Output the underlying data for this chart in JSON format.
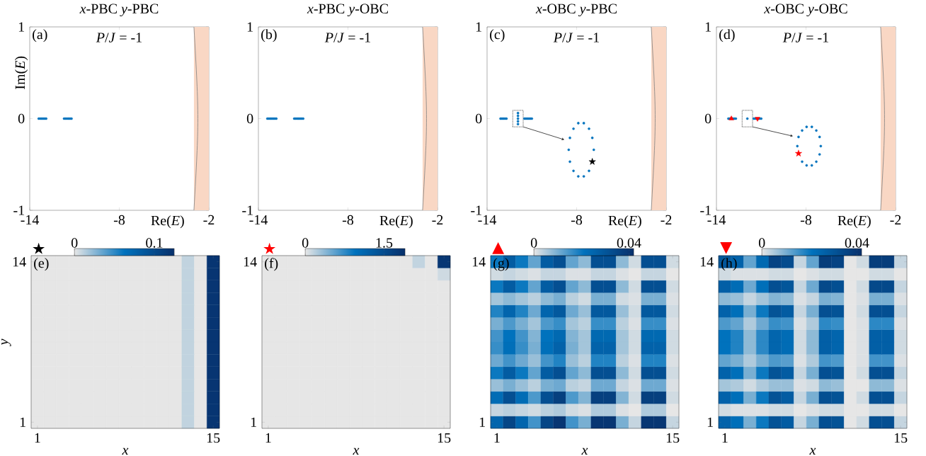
{
  "chart_data": [
    {
      "type": "scatter",
      "title": "*x*-PBC  *y*-PBC",
      "xlabel": "Re(*E*)",
      "ylabel": "Im(*E*)",
      "xlim": [
        -14,
        -2
      ],
      "ylim": [
        -1,
        1
      ],
      "xticks": [
        -14,
        -8,
        -2
      ],
      "yticks": [
        -1,
        0,
        1
      ],
      "marker": "circle",
      "annotations": [
        "(a)",
        "*P*/*J* = -1"
      ],
      "bands": [
        {
          "axis": "x",
          "from": -3.0,
          "to": -2,
          "color": "#f9d7c4"
        }
      ],
      "series": [
        {
          "color": "#0072bd",
          "x": [
            -13.4,
            -13.3,
            -13.2,
            -13.1,
            -13.0,
            -12.9,
            -11.7,
            -11.6,
            -11.5,
            -11.4,
            -11.3,
            -11.2
          ],
          "values": [
            0,
            0,
            0,
            0,
            0,
            0,
            0,
            0,
            0,
            0,
            0,
            0
          ]
        }
      ]
    },
    {
      "type": "scatter",
      "title": "*x*-PBC  *y*-OBC",
      "xlabel": "Re(*E*)",
      "xlim": [
        -14,
        -2
      ],
      "ylim": [
        -1,
        1
      ],
      "xticks": [
        -14,
        -8,
        -2
      ],
      "yticks": [
        -1,
        0,
        1
      ],
      "marker": "circle",
      "annotations": [
        "(b)",
        "*P*/*J* = -1"
      ],
      "bands": [
        {
          "axis": "x",
          "from": -3.0,
          "to": -2,
          "color": "#f9d7c4"
        }
      ],
      "series": [
        {
          "color": "#0072bd",
          "x": [
            -13.4,
            -13.3,
            -13.2,
            -13.1,
            -13.0,
            -12.9,
            -12.8,
            -11.6,
            -11.5,
            -11.4,
            -11.3,
            -11.2,
            -11.1,
            -11.0
          ],
          "values": [
            0,
            0,
            0,
            0,
            0,
            0,
            0,
            0,
            0,
            0,
            0,
            0,
            0,
            0
          ]
        }
      ]
    },
    {
      "type": "scatter",
      "title": "*x*-OBC  *y*-PBC",
      "xlabel": "Re(*E*)",
      "xlim": [
        -14,
        -2
      ],
      "ylim": [
        -1,
        1
      ],
      "xticks": [
        -14,
        -8,
        -2
      ],
      "yticks": [
        -1,
        0,
        1
      ],
      "marker": "circle",
      "annotations": [
        "(c)",
        "*P*/*J* = -1"
      ],
      "bands": [
        {
          "axis": "x",
          "from": -3.0,
          "to": -2,
          "color": "#f9d7c4"
        }
      ],
      "series": [
        {
          "color": "#0072bd",
          "x": [
            -13.1,
            -13.0,
            -12.9,
            -12.8,
            -12.7,
            -11.93,
            -11.93,
            -11.93,
            -11.93,
            -11.93,
            -11.5,
            -11.4,
            -11.3,
            -11.2,
            -11.1,
            -11.0
          ],
          "values": [
            0,
            0,
            0,
            0,
            0,
            -0.06,
            -0.03,
            0,
            0.03,
            0.06,
            0,
            0,
            0,
            0,
            0,
            0
          ]
        },
        {
          "color": "#0072bd",
          "x": [
            -7.89,
            -7.52,
            -7.17,
            -6.95,
            -6.85,
            -7.17,
            -7.52,
            -7.89,
            -8.21,
            -8.45,
            -8.53,
            -8.45,
            -8.21
          ],
          "values": [
            -0.05,
            -0.05,
            -0.11,
            -0.21,
            -0.34,
            -0.57,
            -0.63,
            -0.63,
            -0.57,
            -0.47,
            -0.34,
            -0.21,
            -0.11
          ]
        },
        {
          "color": "#000000",
          "marker": "star",
          "x": [
            -6.95
          ],
          "values": [
            -0.47
          ]
        }
      ]
    },
    {
      "type": "scatter",
      "title": "*x*-OBC  *y*-OBC",
      "xlabel": "Re(*E*)",
      "xlim": [
        -14,
        -2
      ],
      "ylim": [
        -1,
        1
      ],
      "xticks": [
        -14,
        -8,
        -2
      ],
      "yticks": [
        -1,
        0,
        1
      ],
      "marker": "circle",
      "annotations": [
        "(d)",
        "*P*/*J* = -1"
      ],
      "bands": [
        {
          "axis": "x",
          "from": -3.0,
          "to": -2,
          "color": "#f9d7c4"
        }
      ],
      "series": [
        {
          "color": "#0072bd",
          "x": [
            -13.2,
            -13.1,
            -13.0,
            -12.9,
            -12.8,
            -12.7,
            -11.93,
            -11.5,
            -11.4,
            -11.3,
            -11.2,
            -11.1,
            -11.0
          ],
          "values": [
            0,
            0,
            0,
            0,
            0,
            0,
            0,
            0,
            0,
            0,
            0,
            0,
            0
          ]
        },
        {
          "color": "#0072bd",
          "x": [
            -7.96,
            -7.61,
            -7.31,
            -7.09,
            -7.01,
            -7.09,
            -7.31,
            -7.61,
            -7.96,
            -8.26,
            -8.58,
            -8.5,
            -8.26
          ],
          "values": [
            -0.09,
            -0.09,
            -0.13,
            -0.2,
            -0.3,
            -0.39,
            -0.47,
            -0.51,
            -0.51,
            -0.47,
            -0.3,
            -0.2,
            -0.13
          ]
        },
        {
          "color": "#ff0000",
          "marker": "star",
          "x": [
            -8.5
          ],
          "values": [
            -0.38
          ]
        },
        {
          "color": "#ff0000",
          "marker": "triangle",
          "x": [
            -13.0
          ],
          "values": [
            0
          ]
        },
        {
          "color": "#ff0000",
          "marker": "triangle down",
          "x": [
            -11.25
          ],
          "values": [
            0
          ]
        }
      ]
    },
    {
      "type": "heatmap",
      "xlabel": "*x*",
      "ylabel": "*y*",
      "annotations": [
        "★",
        "(e)"
      ],
      "clim": [
        0,
        0.125
      ],
      "cticks": [
        0,
        0.1
      ],
      "categories": [
        "1",
        null,
        null,
        null,
        null,
        null,
        null,
        null,
        null,
        null,
        null,
        null,
        null,
        null,
        "15"
      ],
      "y_categories": [
        "14",
        null,
        null,
        null,
        null,
        null,
        null,
        null,
        null,
        null,
        null,
        null,
        null,
        "1"
      ],
      "cells": [
        [
          0,
          0,
          0,
          0,
          0,
          0,
          0,
          0,
          0,
          0,
          0,
          0,
          0.01,
          0,
          0.12
        ],
        [
          0,
          0,
          0,
          0,
          0,
          0,
          0,
          0,
          0,
          0,
          0,
          0,
          0.01,
          0,
          0.12
        ],
        [
          0,
          0,
          0,
          0,
          0,
          0,
          0,
          0,
          0,
          0,
          0,
          0,
          0.01,
          0,
          0.12
        ],
        [
          0,
          0,
          0,
          0,
          0,
          0,
          0,
          0,
          0,
          0,
          0,
          0,
          0.01,
          0,
          0.12
        ],
        [
          0,
          0,
          0,
          0,
          0,
          0,
          0,
          0,
          0,
          0,
          0,
          0,
          0.01,
          0,
          0.12
        ],
        [
          0,
          0,
          0,
          0,
          0,
          0,
          0,
          0,
          0,
          0,
          0,
          0,
          0.01,
          0,
          0.12
        ],
        [
          0,
          0,
          0,
          0,
          0,
          0,
          0,
          0,
          0,
          0,
          0,
          0,
          0.01,
          0,
          0.12
        ],
        [
          0,
          0,
          0,
          0,
          0,
          0,
          0,
          0,
          0,
          0,
          0,
          0,
          0.01,
          0,
          0.12
        ],
        [
          0,
          0,
          0,
          0,
          0,
          0,
          0,
          0,
          0,
          0,
          0,
          0,
          0.01,
          0,
          0.12
        ],
        [
          0,
          0,
          0,
          0,
          0,
          0,
          0,
          0,
          0,
          0,
          0,
          0,
          0.01,
          0,
          0.12
        ],
        [
          0,
          0,
          0,
          0,
          0,
          0,
          0,
          0,
          0,
          0,
          0,
          0,
          0.01,
          0,
          0.12
        ],
        [
          0,
          0,
          0,
          0,
          0,
          0,
          0,
          0,
          0,
          0,
          0,
          0,
          0.01,
          0,
          0.12
        ],
        [
          0,
          0,
          0,
          0,
          0,
          0,
          0,
          0,
          0,
          0,
          0,
          0,
          0.01,
          0,
          0.12
        ],
        [
          0,
          0,
          0,
          0,
          0,
          0,
          0,
          0,
          0,
          0,
          0,
          0,
          0.01,
          0,
          0.12
        ]
      ]
    },
    {
      "type": "heatmap",
      "xlabel": "*x*",
      "annotations": [
        "★",
        "(f)"
      ],
      "clim": [
        0,
        1.9
      ],
      "cticks": [
        0,
        1.5
      ],
      "categories": [
        "1",
        null,
        null,
        null,
        null,
        null,
        null,
        null,
        null,
        null,
        null,
        null,
        null,
        null,
        "15"
      ],
      "y_categories": [
        "14",
        null,
        null,
        null,
        null,
        null,
        null,
        null,
        null,
        null,
        null,
        null,
        null,
        "1"
      ],
      "cells": [
        [
          0,
          0,
          0,
          0,
          0,
          0,
          0,
          0,
          0,
          0,
          0,
          0,
          0.15,
          0,
          1.8
        ],
        [
          0,
          0,
          0,
          0,
          0,
          0,
          0,
          0,
          0,
          0,
          0,
          0,
          0,
          0,
          0.1
        ],
        [
          0,
          0,
          0,
          0,
          0,
          0,
          0,
          0,
          0,
          0,
          0,
          0,
          0,
          0,
          0
        ],
        [
          0,
          0,
          0,
          0,
          0,
          0,
          0,
          0,
          0,
          0,
          0,
          0,
          0,
          0,
          0
        ],
        [
          0,
          0,
          0,
          0,
          0,
          0,
          0,
          0,
          0,
          0,
          0,
          0,
          0,
          0,
          0
        ],
        [
          0,
          0,
          0,
          0,
          0,
          0,
          0,
          0,
          0,
          0,
          0,
          0,
          0,
          0,
          0
        ],
        [
          0,
          0,
          0,
          0,
          0,
          0,
          0,
          0,
          0,
          0,
          0,
          0,
          0,
          0,
          0
        ],
        [
          0,
          0,
          0,
          0,
          0,
          0,
          0,
          0,
          0,
          0,
          0,
          0,
          0,
          0,
          0
        ],
        [
          0,
          0,
          0,
          0,
          0,
          0,
          0,
          0,
          0,
          0,
          0,
          0,
          0,
          0,
          0
        ],
        [
          0,
          0,
          0,
          0,
          0,
          0,
          0,
          0,
          0,
          0,
          0,
          0,
          0,
          0,
          0
        ],
        [
          0,
          0,
          0,
          0,
          0,
          0,
          0,
          0,
          0,
          0,
          0,
          0,
          0,
          0,
          0
        ],
        [
          0,
          0,
          0,
          0,
          0,
          0,
          0,
          0,
          0,
          0,
          0,
          0,
          0,
          0,
          0
        ],
        [
          0,
          0,
          0,
          0,
          0,
          0,
          0,
          0,
          0,
          0,
          0,
          0,
          0,
          0,
          0
        ],
        [
          0,
          0,
          0,
          0,
          0,
          0,
          0,
          0,
          0,
          0,
          0,
          0,
          0,
          0,
          0
        ]
      ]
    },
    {
      "type": "heatmap",
      "xlabel": "*x*",
      "annotations": [
        "▲",
        "(g)"
      ],
      "clim": [
        0,
        0.042
      ],
      "cticks": [
        0,
        0.04
      ],
      "categories": [
        "1",
        null,
        null,
        null,
        null,
        null,
        null,
        null,
        null,
        null,
        null,
        null,
        null,
        null,
        "15"
      ],
      "y_categories": [
        "14",
        null,
        null,
        null,
        null,
        null,
        null,
        null,
        null,
        null,
        null,
        null,
        null,
        "1"
      ],
      "cells": [
        [
          0.02,
          0.028,
          0.02,
          0.012,
          0.028,
          0.032,
          0.012,
          0.008,
          0.032,
          0.032,
          0.008,
          0.002,
          0.032,
          0.032,
          0.002
        ],
        [
          0.002,
          0.003,
          0.002,
          0.001,
          0.003,
          0.003,
          0.001,
          0.001,
          0.003,
          0.003,
          0.001,
          0,
          0.003,
          0.003,
          0
        ],
        [
          0.02,
          0.028,
          0.02,
          0.012,
          0.028,
          0.032,
          0.012,
          0.008,
          0.032,
          0.032,
          0.008,
          0.002,
          0.032,
          0.032,
          0.002
        ],
        [
          0.006,
          0.008,
          0.006,
          0.004,
          0.008,
          0.01,
          0.004,
          0.002,
          0.01,
          0.01,
          0.002,
          0.001,
          0.01,
          0.01,
          0.001
        ],
        [
          0.018,
          0.025,
          0.018,
          0.011,
          0.025,
          0.029,
          0.011,
          0.007,
          0.029,
          0.029,
          0.007,
          0.002,
          0.029,
          0.029,
          0.002
        ],
        [
          0.01,
          0.014,
          0.01,
          0.006,
          0.014,
          0.016,
          0.006,
          0.004,
          0.016,
          0.016,
          0.004,
          0.001,
          0.016,
          0.016,
          0.001
        ],
        [
          0.015,
          0.021,
          0.015,
          0.009,
          0.021,
          0.024,
          0.009,
          0.006,
          0.024,
          0.024,
          0.006,
          0.002,
          0.024,
          0.024,
          0.002
        ],
        [
          0.016,
          0.022,
          0.016,
          0.01,
          0.022,
          0.026,
          0.01,
          0.006,
          0.026,
          0.026,
          0.006,
          0.002,
          0.026,
          0.026,
          0.002
        ],
        [
          0.011,
          0.015,
          0.011,
          0.007,
          0.015,
          0.018,
          0.007,
          0.004,
          0.018,
          0.018,
          0.004,
          0.001,
          0.018,
          0.018,
          0.001
        ],
        [
          0.02,
          0.028,
          0.02,
          0.012,
          0.028,
          0.032,
          0.012,
          0.008,
          0.032,
          0.032,
          0.008,
          0.002,
          0.032,
          0.032,
          0.002
        ],
        [
          0.007,
          0.01,
          0.007,
          0.004,
          0.01,
          0.011,
          0.004,
          0.003,
          0.011,
          0.011,
          0.003,
          0.001,
          0.011,
          0.011,
          0.001
        ],
        [
          0.023,
          0.032,
          0.023,
          0.014,
          0.032,
          0.037,
          0.014,
          0.009,
          0.037,
          0.037,
          0.009,
          0.002,
          0.037,
          0.037,
          0.002
        ],
        [
          0.003,
          0.004,
          0.003,
          0.002,
          0.004,
          0.005,
          0.002,
          0.001,
          0.005,
          0.005,
          0.001,
          0,
          0.005,
          0.005,
          0
        ],
        [
          0.025,
          0.035,
          0.025,
          0.015,
          0.035,
          0.04,
          0.015,
          0.01,
          0.04,
          0.04,
          0.01,
          0.003,
          0.04,
          0.04,
          0.003
        ]
      ]
    },
    {
      "type": "heatmap",
      "xlabel": "*x*",
      "annotations": [
        "▼",
        "(h)"
      ],
      "clim": [
        0,
        0.042
      ],
      "cticks": [
        0,
        0.04
      ],
      "categories": [
        "1",
        null,
        null,
        null,
        null,
        null,
        null,
        null,
        null,
        null,
        null,
        null,
        null,
        null,
        "15"
      ],
      "y_categories": [
        "14",
        null,
        null,
        null,
        null,
        null,
        null,
        null,
        null,
        null,
        null,
        null,
        null,
        "1"
      ],
      "cells": [
        [
          0.03,
          0.026,
          0.012,
          0.024,
          0.036,
          0.033,
          0.003,
          0.012,
          0.038,
          0.036,
          0,
          0.002,
          0.038,
          0.038,
          0.003
        ],
        [
          0.002,
          0.001,
          0.001,
          0.001,
          0.002,
          0.002,
          0,
          0.001,
          0.002,
          0.002,
          0,
          0,
          0.002,
          0.002,
          0
        ],
        [
          0.027,
          0.023,
          0.011,
          0.022,
          0.032,
          0.03,
          0.003,
          0.011,
          0.034,
          0.032,
          0,
          0.002,
          0.034,
          0.034,
          0.003
        ],
        [
          0.008,
          0.007,
          0.003,
          0.006,
          0.009,
          0.008,
          0.001,
          0.003,
          0.01,
          0.009,
          0,
          0.001,
          0.01,
          0.01,
          0.001
        ],
        [
          0.026,
          0.022,
          0.01,
          0.02,
          0.031,
          0.028,
          0.003,
          0.01,
          0.032,
          0.031,
          0,
          0.002,
          0.032,
          0.032,
          0.003
        ],
        [
          0.014,
          0.012,
          0.005,
          0.011,
          0.016,
          0.015,
          0.001,
          0.005,
          0.017,
          0.016,
          0,
          0.001,
          0.017,
          0.017,
          0.001
        ],
        [
          0.021,
          0.018,
          0.008,
          0.017,
          0.025,
          0.023,
          0.002,
          0.008,
          0.027,
          0.025,
          0,
          0.001,
          0.027,
          0.027,
          0.002
        ],
        [
          0.021,
          0.018,
          0.008,
          0.017,
          0.025,
          0.023,
          0.002,
          0.008,
          0.027,
          0.025,
          0,
          0.001,
          0.027,
          0.027,
          0.002
        ],
        [
          0.012,
          0.01,
          0.005,
          0.01,
          0.014,
          0.013,
          0.001,
          0.005,
          0.015,
          0.014,
          0,
          0.001,
          0.015,
          0.015,
          0.001
        ],
        [
          0.026,
          0.022,
          0.01,
          0.02,
          0.031,
          0.028,
          0.003,
          0.01,
          0.032,
          0.031,
          0,
          0.002,
          0.032,
          0.032,
          0.003
        ],
        [
          0.006,
          0.005,
          0.002,
          0.005,
          0.007,
          0.007,
          0.001,
          0.002,
          0.008,
          0.007,
          0,
          0,
          0.008,
          0.008,
          0.001
        ],
        [
          0.026,
          0.022,
          0.01,
          0.02,
          0.031,
          0.028,
          0.003,
          0.01,
          0.032,
          0.031,
          0,
          0.002,
          0.032,
          0.032,
          0.003
        ],
        [
          0.002,
          0.001,
          0.001,
          0.001,
          0.002,
          0.002,
          0,
          0.001,
          0.002,
          0.002,
          0,
          0,
          0.002,
          0.002,
          0
        ],
        [
          0.026,
          0.022,
          0.01,
          0.02,
          0.031,
          0.028,
          0.003,
          0.01,
          0.032,
          0.031,
          0,
          0.002,
          0.032,
          0.032,
          0.003
        ]
      ]
    }
  ]
}
